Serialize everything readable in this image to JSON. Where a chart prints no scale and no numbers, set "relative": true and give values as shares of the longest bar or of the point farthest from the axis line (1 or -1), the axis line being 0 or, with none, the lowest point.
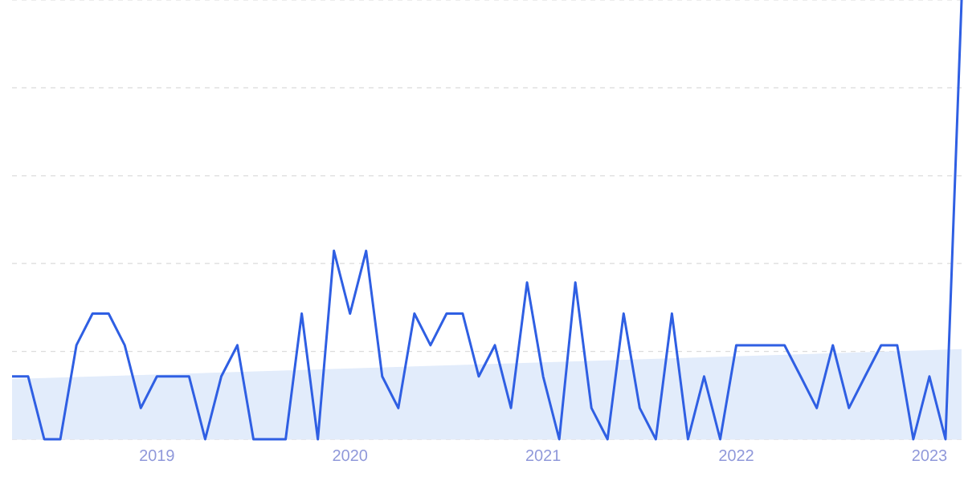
{
  "chart_data": {
    "type": "line",
    "relative": true,
    "grid": "y",
    "x": [
      "2018-04",
      "2018-05",
      "2018-06",
      "2018-07",
      "2018-08",
      "2018-09",
      "2018-10",
      "2018-11",
      "2018-12",
      "2019-01",
      "2019-02",
      "2019-03",
      "2019-04",
      "2019-05",
      "2019-06",
      "2019-07",
      "2019-08",
      "2019-09",
      "2019-10",
      "2019-11",
      "2019-12",
      "2020-01",
      "2020-02",
      "2020-03",
      "2020-04",
      "2020-05",
      "2020-06",
      "2020-07",
      "2020-08",
      "2020-09",
      "2020-10",
      "2020-11",
      "2020-12",
      "2021-01",
      "2021-02",
      "2021-03",
      "2021-04",
      "2021-05",
      "2021-06",
      "2021-07",
      "2021-08",
      "2021-09",
      "2021-10",
      "2021-11",
      "2021-12",
      "2022-01",
      "2022-02",
      "2022-03",
      "2022-04",
      "2022-05",
      "2022-06",
      "2022-07",
      "2022-08",
      "2022-09",
      "2022-10",
      "2022-11",
      "2022-12",
      "2023-01",
      "2023-02",
      "2023-03"
    ],
    "xlim": [
      "2018-04",
      "2023-03"
    ],
    "xticks": [
      "2019",
      "2020",
      "2021",
      "2022",
      "2023"
    ],
    "series": [
      {
        "type": "area",
        "color": "#e2ecfb",
        "x": [
          "2018-04",
          "2023-03"
        ],
        "values": [
          0.137,
          0.205
        ]
      },
      {
        "color": "#2f5fe3",
        "values": [
          0.143,
          0.143,
          0,
          0,
          0.214,
          0.286,
          0.286,
          0.214,
          0.071,
          0.143,
          0.143,
          0.143,
          0,
          0.143,
          0.214,
          0,
          0,
          0,
          0.286,
          0,
          0.429,
          0.286,
          0.429,
          0.143,
          0.071,
          0.286,
          0.214,
          0.286,
          0.286,
          0.143,
          0.214,
          0.071,
          0.357,
          0.143,
          0,
          0.357,
          0.071,
          0,
          0.286,
          0.071,
          0,
          0.286,
          0,
          0.143,
          0,
          0.214,
          0.214,
          0.214,
          0.214,
          0.143,
          0.071,
          0.214,
          0.071,
          0.143,
          0.214,
          0.214,
          0,
          0.143,
          0,
          1
        ]
      }
    ]
  }
}
